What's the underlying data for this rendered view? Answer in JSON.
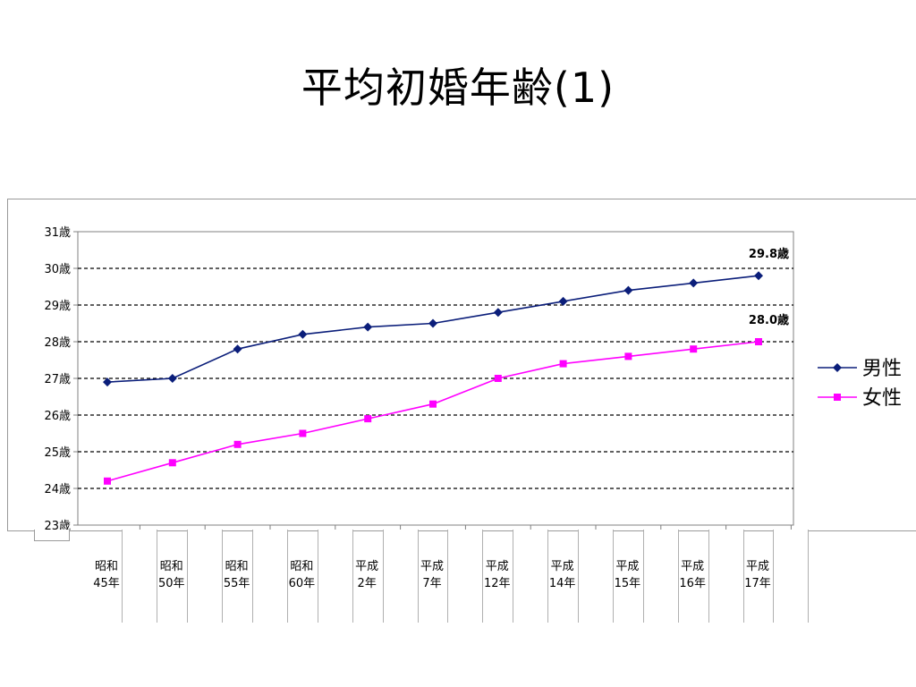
{
  "slide": {
    "title": "平均初婚年齢(1)"
  },
  "chart_data": {
    "type": "line",
    "title": "",
    "xlabel": "",
    "ylabel": "",
    "categories": [
      [
        "昭和",
        "45年"
      ],
      [
        "昭和",
        "50年"
      ],
      [
        "昭和",
        "55年"
      ],
      [
        "昭和",
        "60年"
      ],
      [
        "平成",
        "2年"
      ],
      [
        "平成",
        "7年"
      ],
      [
        "平成",
        "12年"
      ],
      [
        "平成",
        "14年"
      ],
      [
        "平成",
        "15年"
      ],
      [
        "平成",
        "16年"
      ],
      [
        "平成",
        "17年"
      ]
    ],
    "y_tick_labels": [
      "23歳",
      "24歳",
      "25歳",
      "26歳",
      "27歳",
      "28歳",
      "29歳",
      "30歳",
      "31歳"
    ],
    "ylim": [
      23,
      31
    ],
    "grid": "dashed horizontal",
    "legend_position": "right",
    "series": [
      {
        "name": "男性",
        "color": "#0b1e7a",
        "marker": "diamond",
        "values": [
          26.9,
          27.0,
          27.8,
          28.2,
          28.4,
          28.5,
          28.8,
          29.1,
          29.4,
          29.6,
          29.8
        ],
        "end_label": "29.8歳"
      },
      {
        "name": "女性",
        "color": "#ff00ff",
        "marker": "square",
        "values": [
          24.2,
          24.7,
          25.2,
          25.5,
          25.9,
          26.3,
          27.0,
          27.4,
          27.6,
          27.8,
          28.0
        ],
        "end_label": "28.0歳"
      }
    ]
  }
}
